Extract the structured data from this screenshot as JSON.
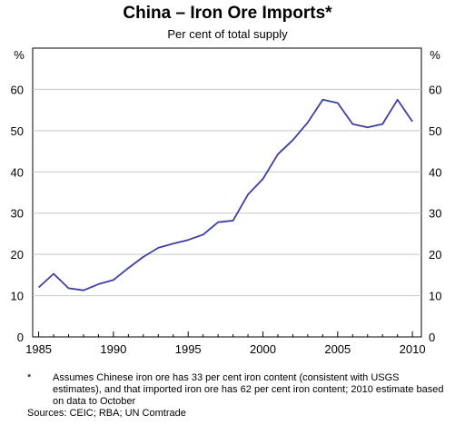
{
  "chart_data": {
    "type": "line",
    "title": "China – Iron Ore Imports*",
    "subtitle": "Per cent of total supply",
    "ylabel_left": "%",
    "ylabel_right": "%",
    "ylim": [
      0,
      70
    ],
    "xlim": [
      1984.6,
      2010.6
    ],
    "x_ticks": [
      "1985",
      "1990",
      "1995",
      "2000",
      "2005",
      "2010"
    ],
    "y_ticks": [
      "0",
      "10",
      "20",
      "30",
      "40",
      "50",
      "60"
    ],
    "grid": true,
    "series": [
      {
        "color": "#3d3fa0",
        "x": [
          1985,
          1986,
          1987,
          1988,
          1989,
          1990,
          1991,
          1992,
          1993,
          1994,
          1995,
          1996,
          1997,
          1998,
          1999,
          2000,
          2001,
          2002,
          2003,
          2004,
          2005,
          2006,
          2007,
          2008,
          2009,
          2010
        ],
        "values": [
          12.0,
          15.3,
          11.8,
          11.3,
          12.8,
          13.8,
          16.7,
          19.4,
          21.6,
          22.6,
          23.5,
          24.8,
          27.8,
          28.2,
          34.5,
          38.3,
          44.3,
          47.7,
          52.0,
          57.5,
          56.7,
          51.6,
          50.8,
          51.6,
          57.5,
          52.2
        ]
      }
    ]
  },
  "footnote": {
    "marker": "*",
    "text": "Assumes Chinese iron ore has 33 per cent iron content (consistent with USGS estimates), and that imported iron ore has 62 per cent iron content; 2010 estimate based on data to October"
  },
  "sources": "Sources: CEIC; RBA; UN Comtrade"
}
